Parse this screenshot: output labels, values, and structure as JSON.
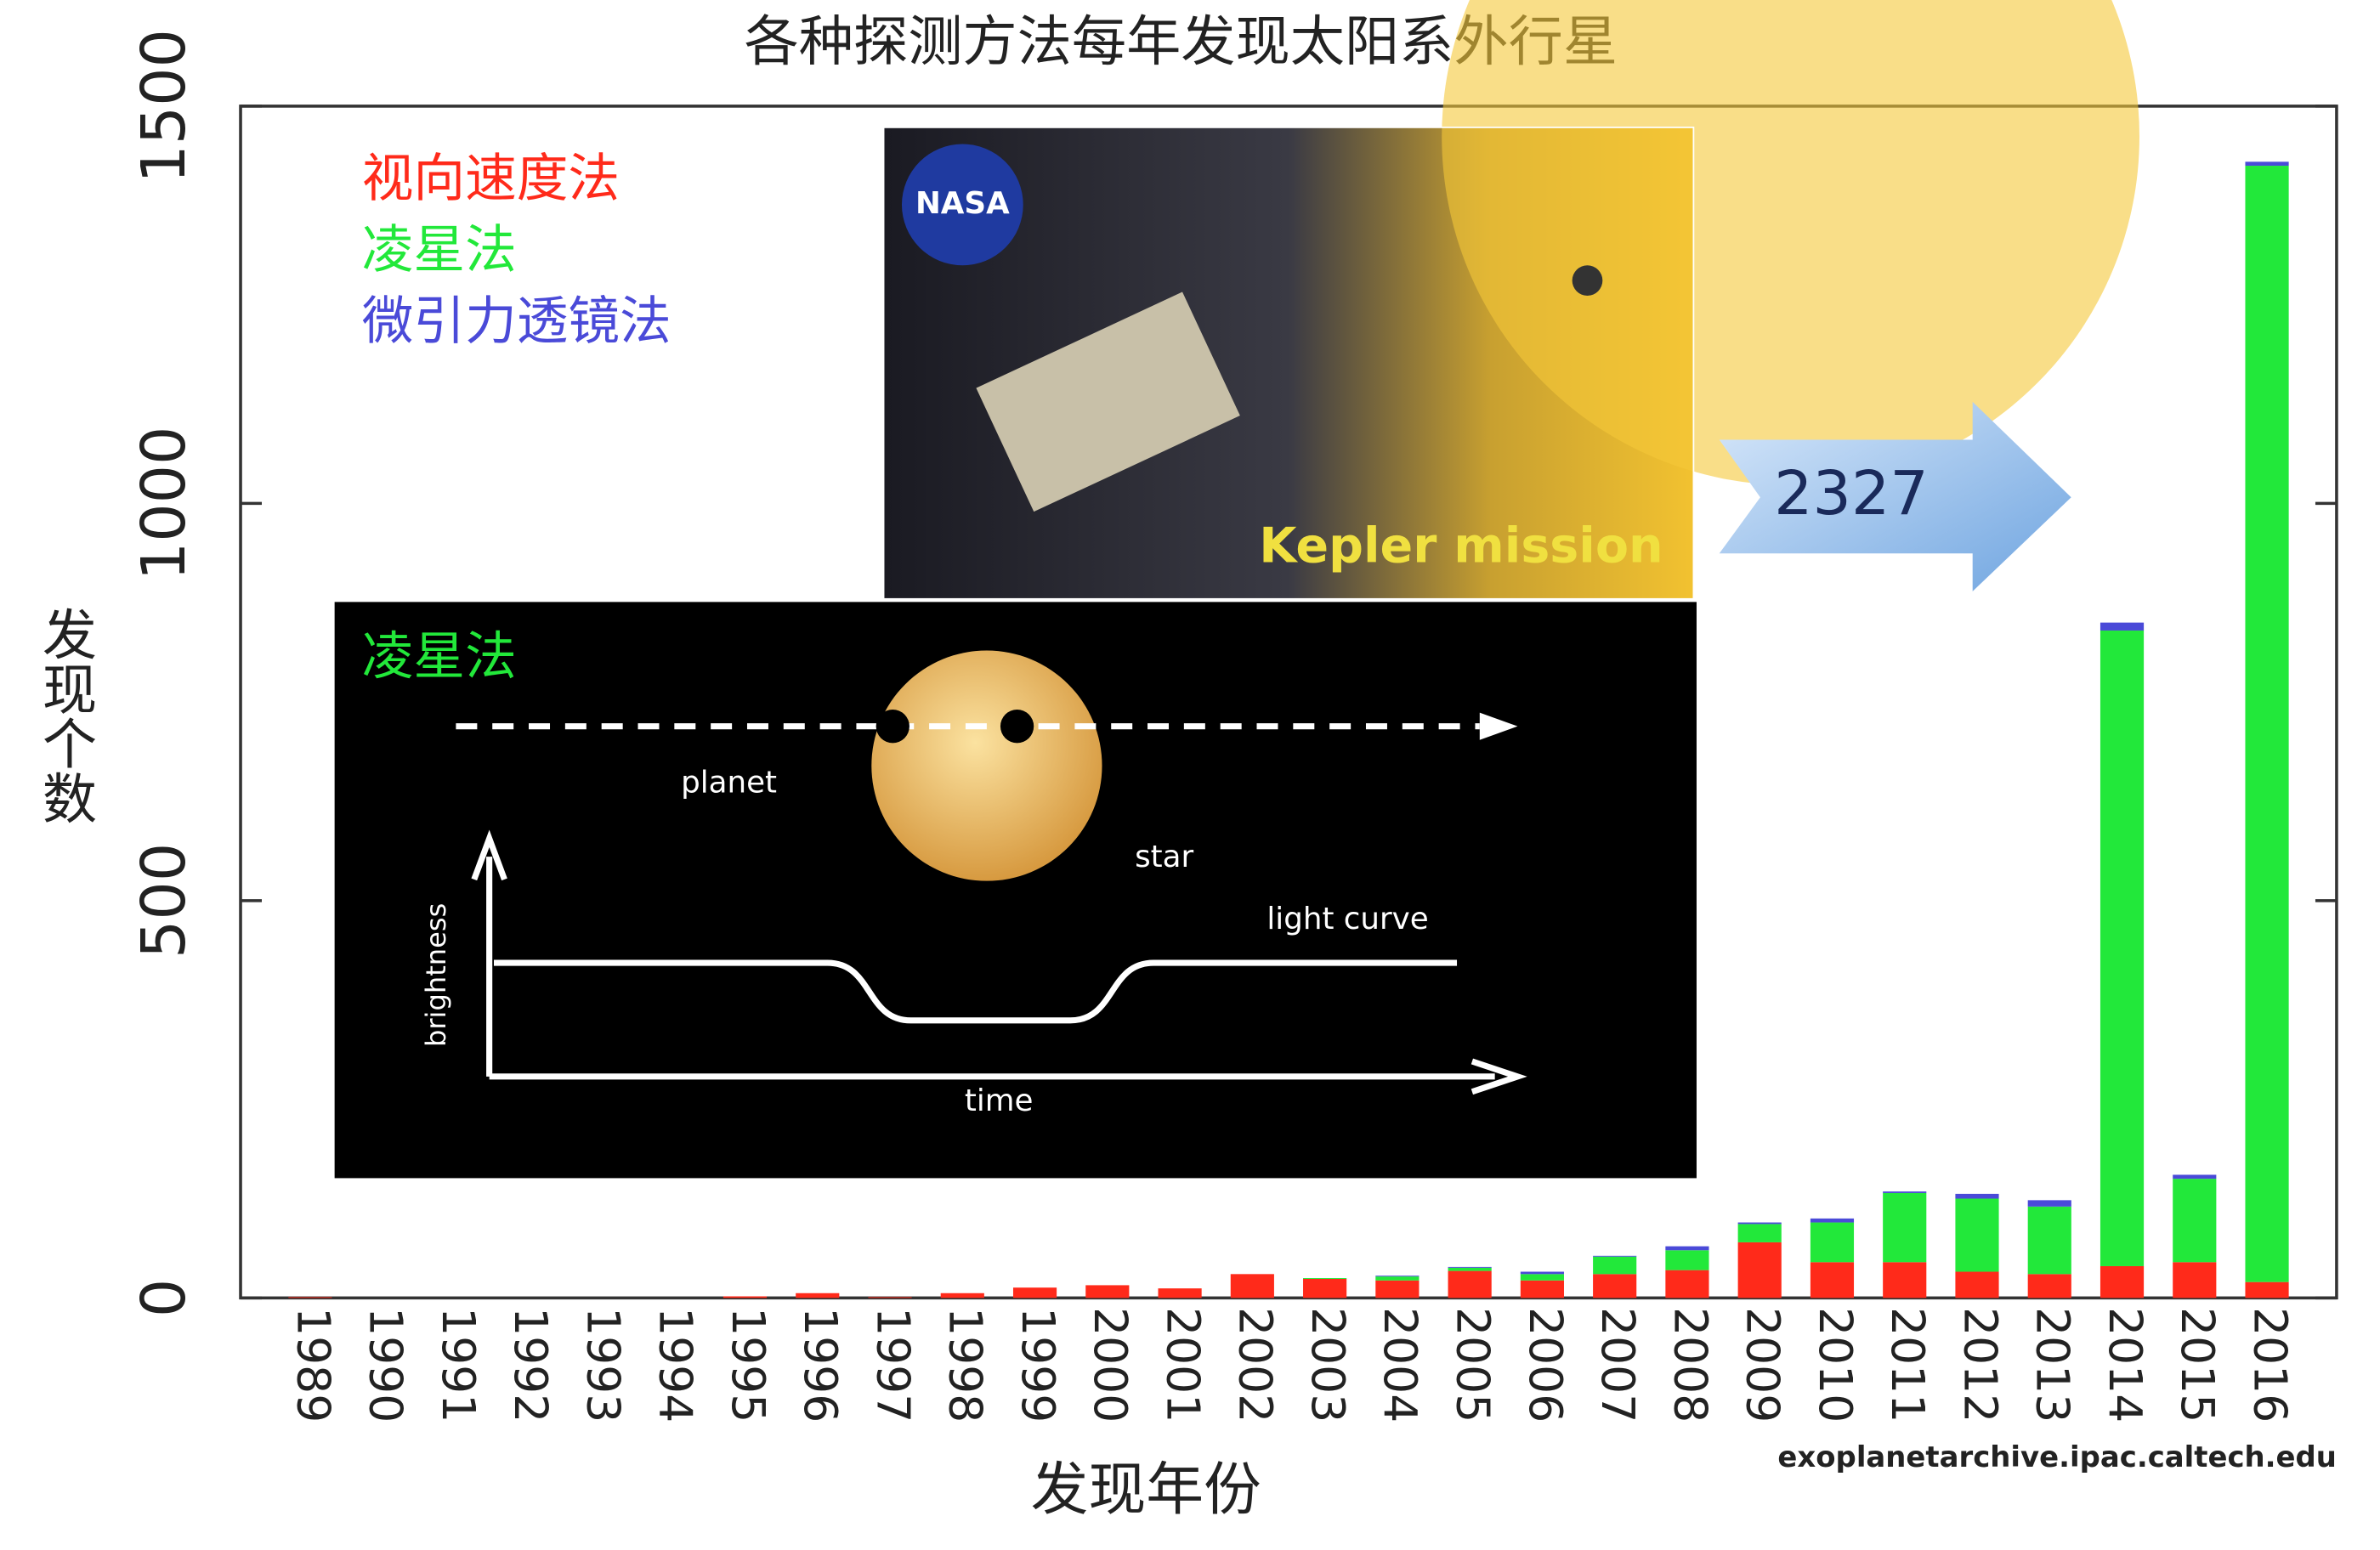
{
  "chart_data": {
    "type": "stacked_bar",
    "title": "各种探测方法每年发现太阳系外行星",
    "x_label": "发现年份",
    "y_label": "发现个数",
    "source": "exoplanetarchive.ipac.caltech.edu",
    "annotations": [
      "NASA",
      "Kepler mission",
      "2327",
      "凌星法",
      "planet",
      "star",
      "light curve",
      "brightness",
      "time"
    ],
    "categories": [
      "1989",
      "1990",
      "1991",
      "1992",
      "1993",
      "1994",
      "1995",
      "1996",
      "1997",
      "1998",
      "1999",
      "2000",
      "2001",
      "2002",
      "2003",
      "2004",
      "2005",
      "2006",
      "2007",
      "2008",
      "2009",
      "2010",
      "2011",
      "2012",
      "2013",
      "2014",
      "2015",
      "2016"
    ],
    "series": [
      {
        "name": "视向速度法",
        "color": "#ff2a1a",
        "values": [
          1,
          0,
          0,
          0,
          0,
          0,
          2,
          6,
          1,
          6,
          13,
          16,
          12,
          30,
          24,
          22,
          34,
          22,
          30,
          35,
          70,
          45,
          45,
          33,
          30,
          40,
          45,
          20
        ]
      },
      {
        "name": "凌星法",
        "color": "#22e83a",
        "values": [
          0,
          0,
          0,
          0,
          0,
          0,
          0,
          0,
          0,
          0,
          0,
          0,
          0,
          0,
          1,
          5,
          4,
          8,
          22,
          25,
          23,
          50,
          87,
          92,
          85,
          800,
          105,
          1405
        ]
      },
      {
        "name": "微引力透镜法",
        "color": "#4a4ad8",
        "values": [
          0,
          0,
          0,
          0,
          0,
          0,
          0,
          0,
          0,
          0,
          0,
          0,
          0,
          0,
          0,
          1,
          1,
          3,
          1,
          5,
          2,
          5,
          2,
          6,
          8,
          10,
          5,
          5
        ]
      }
    ],
    "ylim": [
      0,
      1500
    ],
    "yticks": [
      0,
      500,
      1000,
      1500
    ]
  }
}
